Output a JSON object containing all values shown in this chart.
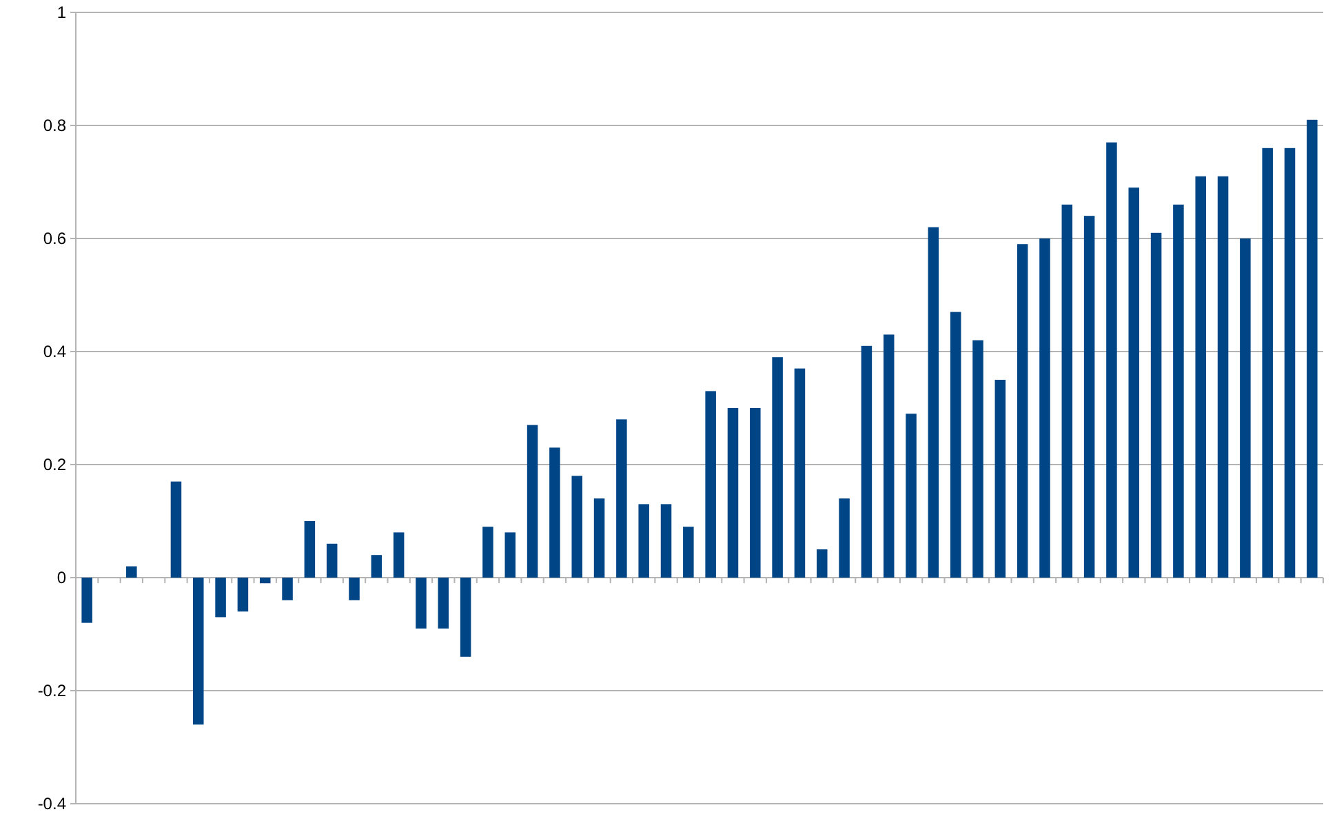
{
  "chart_data": {
    "type": "bar",
    "categories": [
      null,
      null,
      null,
      null,
      null,
      null,
      null,
      null,
      null,
      null,
      null,
      null,
      null,
      null,
      null,
      null,
      null,
      null,
      null,
      null,
      null,
      null,
      null,
      null,
      null,
      null,
      null,
      null,
      null,
      null,
      null,
      null,
      null,
      null,
      null,
      null,
      null,
      null,
      null,
      null,
      null,
      null,
      null,
      null,
      null,
      null,
      null,
      null,
      null,
      null,
      null,
      null,
      null,
      null,
      null,
      null
    ],
    "values": [
      -0.08,
      0,
      0.02,
      0,
      0.17,
      -0.26,
      -0.07,
      -0.06,
      -0.01,
      -0.04,
      0.1,
      0.06,
      -0.04,
      0.04,
      0.08,
      -0.09,
      -0.09,
      -0.14,
      0.09,
      0.08,
      0.27,
      0.23,
      0.18,
      0.14,
      0.28,
      0.13,
      0.13,
      0.09,
      0.33,
      0.3,
      0.3,
      0.39,
      0.37,
      0.05,
      0.14,
      0.41,
      0.43,
      0.29,
      0.62,
      0.47,
      0.42,
      0.35,
      0.59,
      0.6,
      0.66,
      0.64,
      0.77,
      0.69,
      0.61,
      0.66,
      0.71,
      0.71,
      0.6,
      0.76,
      0.76,
      0.81
    ],
    "color": "#004586",
    "ylim": [
      -0.4,
      1
    ],
    "yticks": [
      -0.4,
      -0.2,
      0,
      0.2,
      0.4,
      0.6,
      0.8,
      1
    ],
    "grid": "y",
    "tick_labels": "y"
  }
}
